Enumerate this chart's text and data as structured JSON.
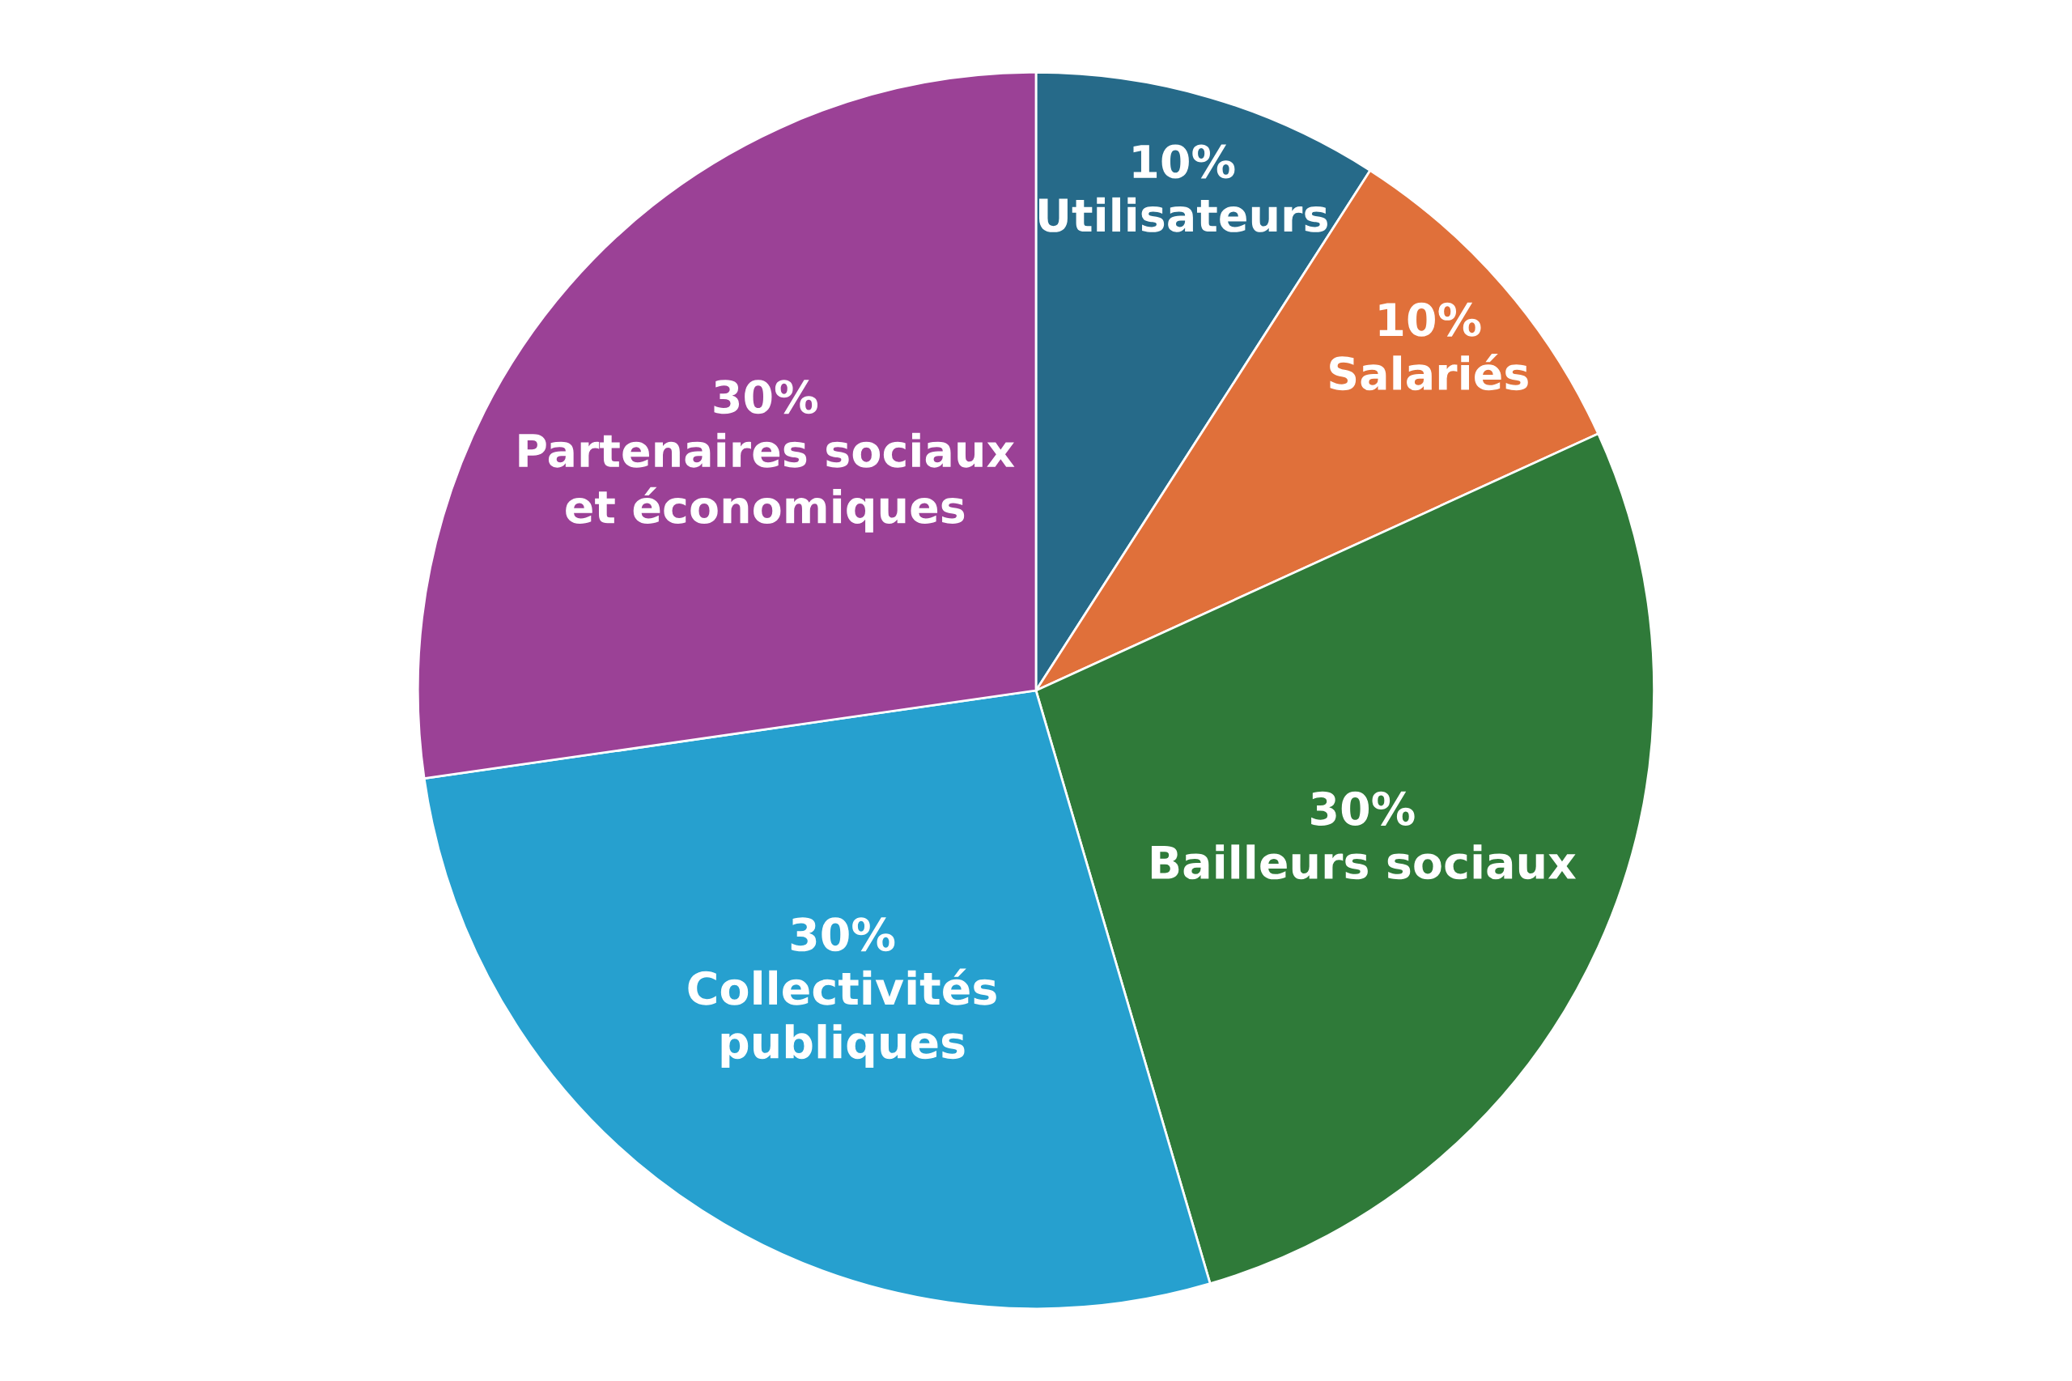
{
  "chart_data": {
    "type": "pie",
    "categories": [
      "Utilisateurs",
      "Salariés",
      "Bailleurs sociaux",
      "Collectivités publiques",
      "Partenaires sociaux et économiques"
    ],
    "values": [
      10,
      10,
      30,
      30,
      30
    ],
    "value_labels": [
      "10%",
      "10%",
      "30%",
      "30%",
      "30%"
    ],
    "colors": [
      "#266a89",
      "#e0703a",
      "#2f7a39",
      "#26a0cf",
      "#9b4196"
    ]
  }
}
